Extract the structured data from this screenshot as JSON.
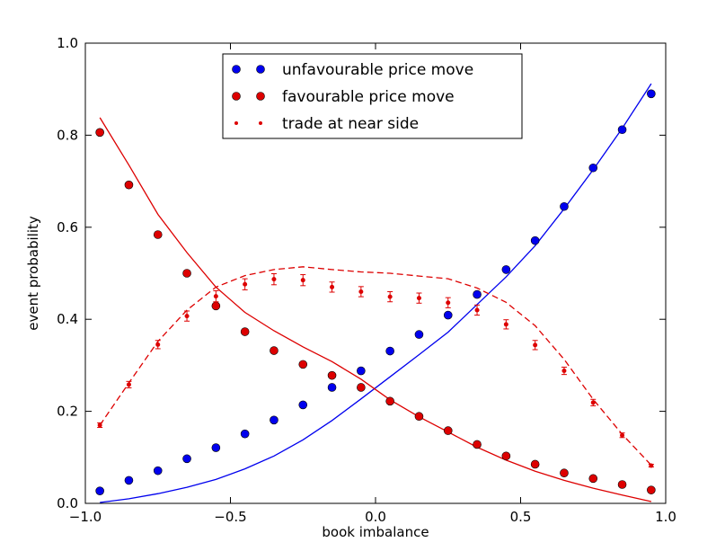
{
  "chart_data": {
    "type": "scatter",
    "title": "",
    "xlabel": "book imbalance",
    "ylabel": "event probability",
    "xlim": [
      -1.0,
      1.0
    ],
    "ylim": [
      0.0,
      1.0
    ],
    "grid": false,
    "legend_position": "top-center",
    "x_ticks": [
      {
        "value": -1.0,
        "label": "−1.0"
      },
      {
        "value": -0.5,
        "label": "−0.5"
      },
      {
        "value": 0.0,
        "label": "0.0"
      },
      {
        "value": 0.5,
        "label": "0.5"
      },
      {
        "value": 1.0,
        "label": "1.0"
      }
    ],
    "y_ticks": [
      {
        "value": 0.0,
        "label": "0.0"
      },
      {
        "value": 0.2,
        "label": "0.2"
      },
      {
        "value": 0.4,
        "label": "0.4"
      },
      {
        "value": 0.6,
        "label": "0.6"
      },
      {
        "value": 0.8,
        "label": "0.8"
      },
      {
        "value": 1.0,
        "label": "1.0"
      }
    ],
    "x": [
      -0.95,
      -0.85,
      -0.75,
      -0.65,
      -0.55,
      -0.45,
      -0.35,
      -0.25,
      -0.15,
      -0.05,
      0.05,
      0.15,
      0.25,
      0.35,
      0.45,
      0.55,
      0.65,
      0.75,
      0.85,
      0.95
    ],
    "series": [
      {
        "name": "unfavourable price move",
        "color": "#0000ee",
        "marker": "circle",
        "values": [
          0.027,
          0.05,
          0.071,
          0.097,
          0.121,
          0.151,
          0.181,
          0.214,
          0.252,
          0.288,
          0.331,
          0.367,
          0.409,
          0.454,
          0.508,
          0.571,
          0.645,
          0.729,
          0.812,
          0.89
        ]
      },
      {
        "name": "favourable price move",
        "color": "#dd0000",
        "marker": "circle",
        "values": [
          0.806,
          0.692,
          0.584,
          0.5,
          0.429,
          0.373,
          0.332,
          0.302,
          0.278,
          0.252,
          0.222,
          0.189,
          0.158,
          0.128,
          0.103,
          0.085,
          0.066,
          0.054,
          0.041,
          0.029
        ]
      },
      {
        "name": "trade at near side",
        "color": "#dd0000",
        "marker": "dot-errorbar",
        "values": [
          0.17,
          0.258,
          0.345,
          0.407,
          0.45,
          0.476,
          0.487,
          0.485,
          0.47,
          0.46,
          0.449,
          0.446,
          0.436,
          0.42,
          0.389,
          0.344,
          0.288,
          0.219,
          0.148,
          0.082
        ],
        "errors": [
          0.005,
          0.007,
          0.009,
          0.011,
          0.012,
          0.012,
          0.012,
          0.012,
          0.011,
          0.011,
          0.011,
          0.011,
          0.011,
          0.011,
          0.01,
          0.01,
          0.008,
          0.007,
          0.005,
          0.003
        ]
      }
    ],
    "curves": [
      {
        "color": "#0000ee",
        "style": "solid",
        "x": [
          -0.95,
          -0.85,
          -0.75,
          -0.65,
          -0.55,
          -0.45,
          -0.35,
          -0.25,
          -0.15,
          -0.05,
          0.05,
          0.15,
          0.25,
          0.35,
          0.45,
          0.55,
          0.65,
          0.75,
          0.85,
          0.95
        ],
        "y": [
          0.002,
          0.01,
          0.021,
          0.035,
          0.052,
          0.075,
          0.103,
          0.138,
          0.18,
          0.227,
          0.275,
          0.323,
          0.372,
          0.432,
          0.492,
          0.56,
          0.64,
          0.725,
          0.815,
          0.912
        ]
      },
      {
        "color": "#dd0000",
        "style": "solid",
        "x": [
          -0.95,
          -0.85,
          -0.75,
          -0.65,
          -0.55,
          -0.45,
          -0.35,
          -0.25,
          -0.15,
          -0.05,
          0.05,
          0.15,
          0.25,
          0.35,
          0.45,
          0.55,
          0.65,
          0.75,
          0.85,
          0.95
        ],
        "y": [
          0.838,
          0.735,
          0.628,
          0.545,
          0.47,
          0.415,
          0.375,
          0.34,
          0.308,
          0.27,
          0.225,
          0.188,
          0.155,
          0.122,
          0.094,
          0.07,
          0.05,
          0.033,
          0.018,
          0.004
        ]
      },
      {
        "color": "#dd0000",
        "style": "dashed",
        "x": [
          -0.95,
          -0.85,
          -0.75,
          -0.65,
          -0.55,
          -0.45,
          -0.35,
          -0.25,
          -0.15,
          -0.05,
          0.05,
          0.15,
          0.25,
          0.35,
          0.45,
          0.55,
          0.65,
          0.75,
          0.85,
          0.95
        ],
        "y": [
          0.17,
          0.262,
          0.352,
          0.42,
          0.47,
          0.495,
          0.508,
          0.514,
          0.508,
          0.503,
          0.5,
          0.494,
          0.488,
          0.468,
          0.437,
          0.386,
          0.313,
          0.226,
          0.15,
          0.083
        ]
      }
    ]
  }
}
